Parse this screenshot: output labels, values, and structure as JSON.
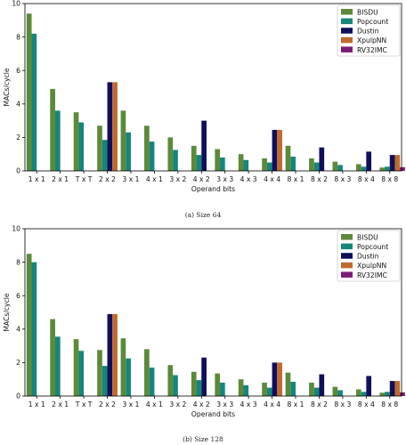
{
  "colors": {
    "BISDU": "#5b8a3a",
    "Popcount": "#16857a",
    "Dustin": "#0f0f5c",
    "XpulpNN": "#c06a2d",
    "RV32IMC": "#7b1b77"
  },
  "chart_data": [
    {
      "type": "bar",
      "caption": "(a) Size 64",
      "xlabel": "Operand bits",
      "ylabel": "MACs/cycle",
      "ylim": [
        0,
        10
      ],
      "yticks": [
        0,
        2,
        4,
        6,
        8,
        10
      ],
      "grid": false,
      "legend_position": "top-right",
      "categories": [
        "1 x 1",
        "2 x 1",
        "T x T",
        "2 x 2",
        "3 x 1",
        "4 x 1",
        "3 x 2",
        "4 x 2",
        "3 x 3",
        "4 x 3",
        "4 x 4",
        "8 x 1",
        "8 x 2",
        "8 x 3",
        "8 x 4",
        "8 x 8"
      ],
      "series": [
        {
          "name": "BISDU",
          "values": [
            9.4,
            4.9,
            3.5,
            2.7,
            3.6,
            2.7,
            2.0,
            1.5,
            1.3,
            1.0,
            0.75,
            1.5,
            0.75,
            0.55,
            0.4,
            0.2
          ]
        },
        {
          "name": "Popcount",
          "values": [
            8.2,
            3.6,
            2.9,
            1.85,
            2.3,
            1.75,
            1.25,
            0.95,
            0.8,
            0.65,
            0.5,
            0.85,
            0.5,
            0.35,
            0.25,
            0.25
          ]
        },
        {
          "name": "Dustin",
          "values": [
            null,
            null,
            null,
            5.3,
            null,
            null,
            null,
            3.0,
            null,
            null,
            2.45,
            null,
            1.4,
            null,
            1.15,
            0.95
          ]
        },
        {
          "name": "XpulpNN",
          "values": [
            null,
            null,
            null,
            5.3,
            null,
            null,
            null,
            null,
            null,
            null,
            2.45,
            null,
            null,
            null,
            null,
            0.95
          ]
        },
        {
          "name": "RV32IMC",
          "values": [
            null,
            null,
            null,
            null,
            null,
            null,
            null,
            null,
            null,
            null,
            null,
            null,
            null,
            null,
            null,
            0.22
          ]
        }
      ]
    },
    {
      "type": "bar",
      "caption": "(b) Size 128",
      "xlabel": "Operand bits",
      "ylabel": "MACs/cycle",
      "ylim": [
        0,
        10
      ],
      "yticks": [
        0,
        2,
        4,
        6,
        8,
        10
      ],
      "grid": false,
      "legend_position": "top-right",
      "categories": [
        "1 x 1",
        "2 x 1",
        "T x T",
        "2 x 2",
        "3 x 1",
        "4 x 1",
        "3 x 2",
        "4 x 2",
        "3 x 3",
        "4 x 3",
        "4 x 4",
        "8 x 1",
        "8 x 2",
        "8 x 3",
        "8 x 4",
        "8 x 8"
      ],
      "series": [
        {
          "name": "BISDU",
          "values": [
            8.5,
            4.6,
            3.4,
            2.75,
            3.45,
            2.8,
            1.85,
            1.45,
            1.35,
            1.0,
            0.8,
            1.4,
            0.8,
            0.55,
            0.4,
            0.2
          ]
        },
        {
          "name": "Popcount",
          "values": [
            8.0,
            3.55,
            2.7,
            1.8,
            2.25,
            1.7,
            1.25,
            0.95,
            0.8,
            0.65,
            0.5,
            0.85,
            0.5,
            0.35,
            0.25,
            0.25
          ]
        },
        {
          "name": "Dustin",
          "values": [
            null,
            null,
            null,
            4.9,
            null,
            null,
            null,
            2.3,
            null,
            null,
            2.0,
            null,
            1.3,
            null,
            1.2,
            0.9
          ]
        },
        {
          "name": "XpulpNN",
          "values": [
            null,
            null,
            null,
            4.9,
            null,
            null,
            null,
            null,
            null,
            null,
            2.0,
            null,
            null,
            null,
            null,
            0.9
          ]
        },
        {
          "name": "RV32IMC",
          "values": [
            null,
            null,
            null,
            null,
            null,
            null,
            null,
            null,
            null,
            null,
            null,
            null,
            null,
            null,
            null,
            0.22
          ]
        }
      ]
    }
  ]
}
